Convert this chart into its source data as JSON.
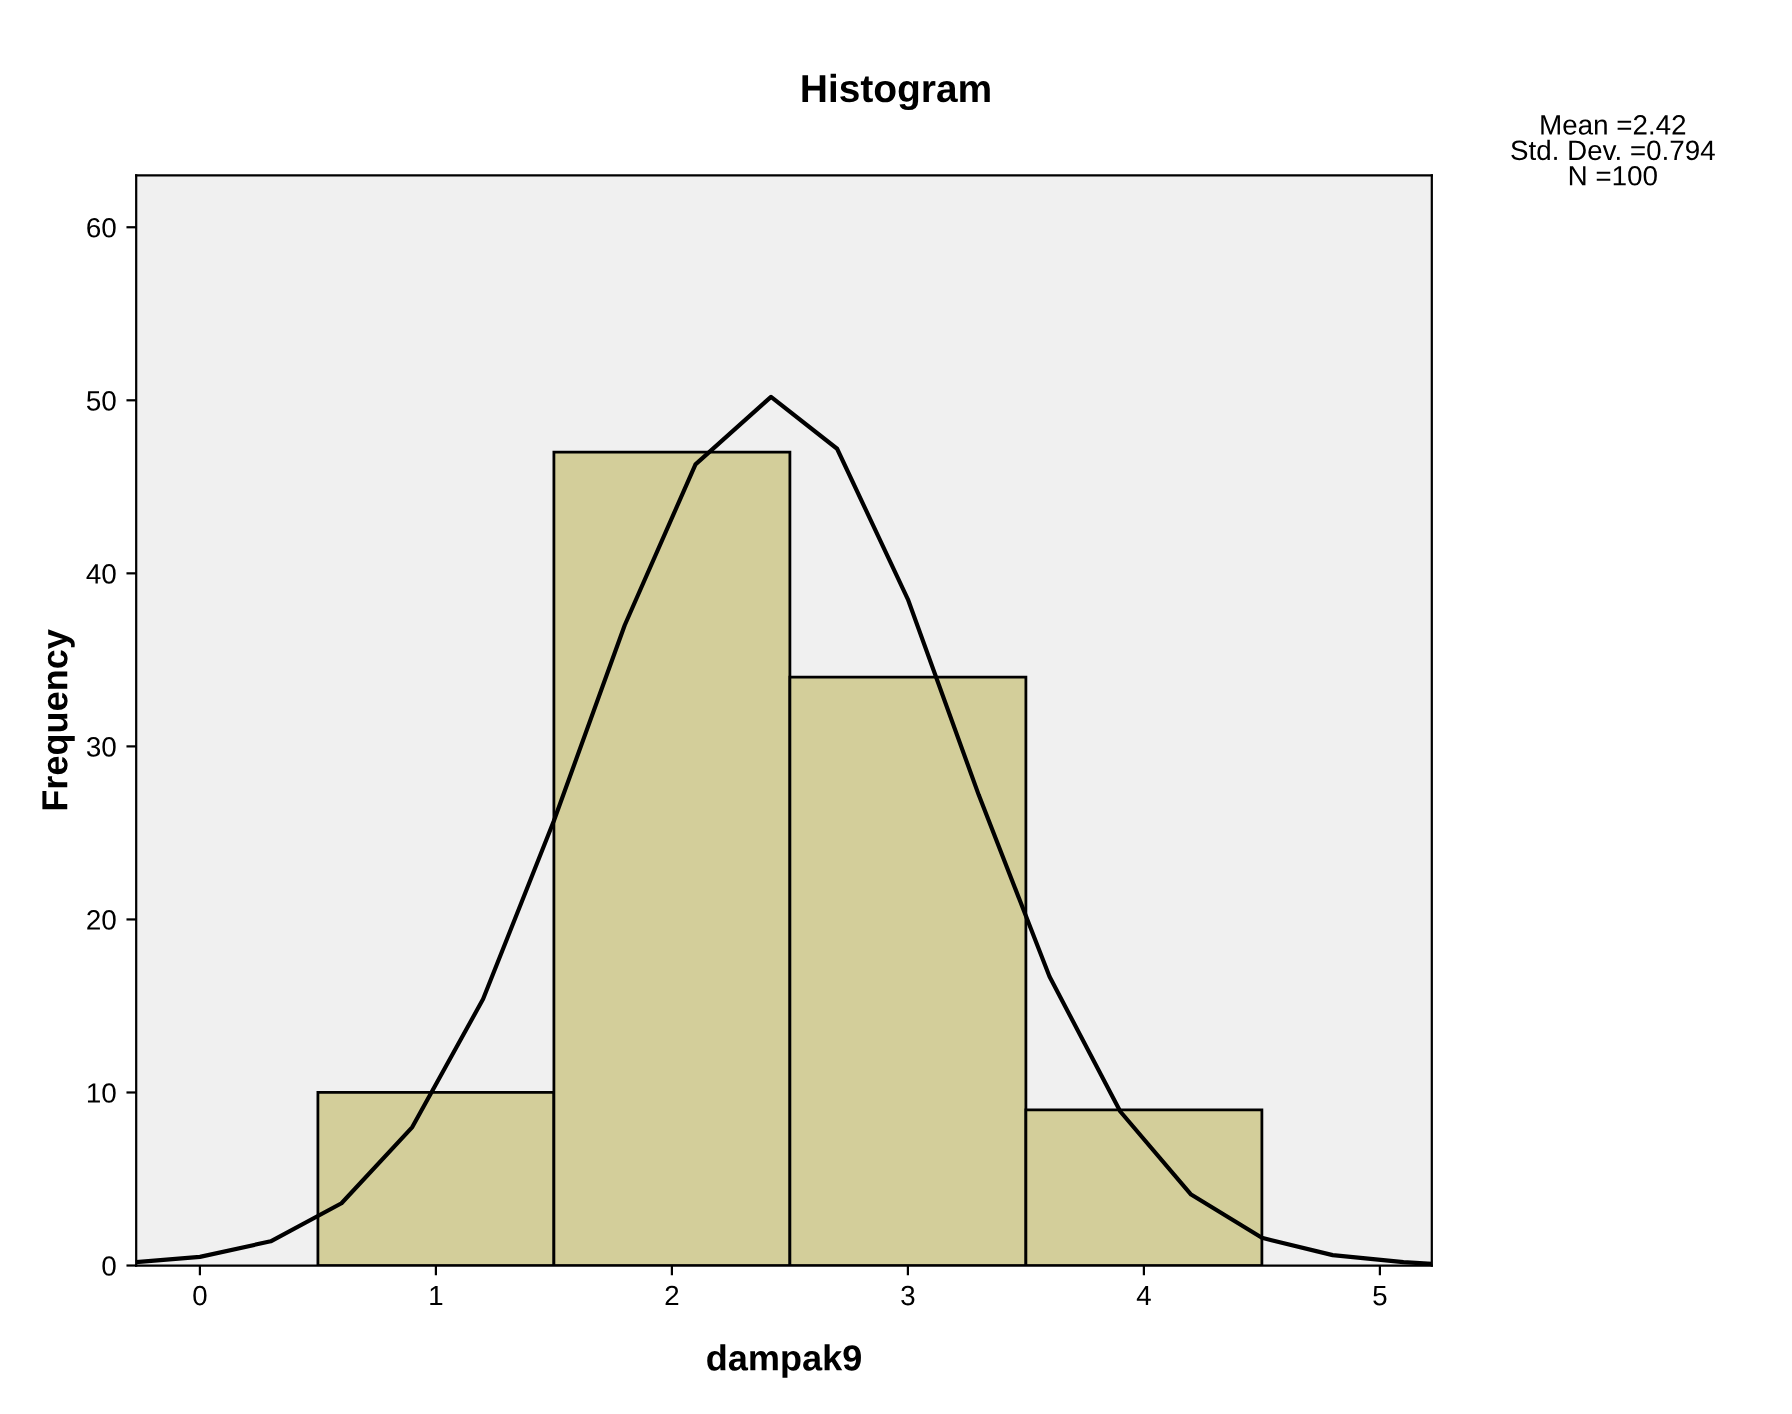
{
  "chart_data": {
    "type": "histogram",
    "title": "Histogram",
    "xlabel": "dampak9",
    "ylabel": "Frequency",
    "series": [
      {
        "bins": [
          0.5,
          1.5,
          2.5,
          3.5,
          4.5
        ],
        "values": [
          10,
          47,
          34,
          9
        ],
        "color": "#d3ce9a"
      },
      {
        "type": "line",
        "x": [
          -0.27,
          0,
          0.3,
          0.6,
          0.9,
          1.2,
          1.5,
          1.8,
          2.1,
          2.42,
          2.7,
          3.0,
          3.3,
          3.6,
          3.9,
          4.2,
          4.5,
          4.8,
          5.1,
          5.22
        ],
        "values": [
          0.2,
          0.5,
          1.4,
          3.6,
          8.0,
          15.4,
          25.7,
          37.0,
          46.3,
          50.2,
          47.2,
          38.5,
          27.2,
          16.7,
          8.9,
          4.1,
          1.6,
          0.6,
          0.2,
          0.1
        ],
        "color": "#000000"
      }
    ],
    "xlim": [
      -0.27,
      5.22
    ],
    "ylim": [
      0,
      63
    ],
    "xticks": [
      0,
      1,
      2,
      3,
      4,
      5
    ],
    "yticks": [
      0,
      10,
      20,
      30,
      40,
      50,
      60
    ],
    "grid": false,
    "legend": false,
    "annotations": [
      "Mean =2.42",
      "Std. Dev. =0.794",
      "N =100"
    ]
  }
}
